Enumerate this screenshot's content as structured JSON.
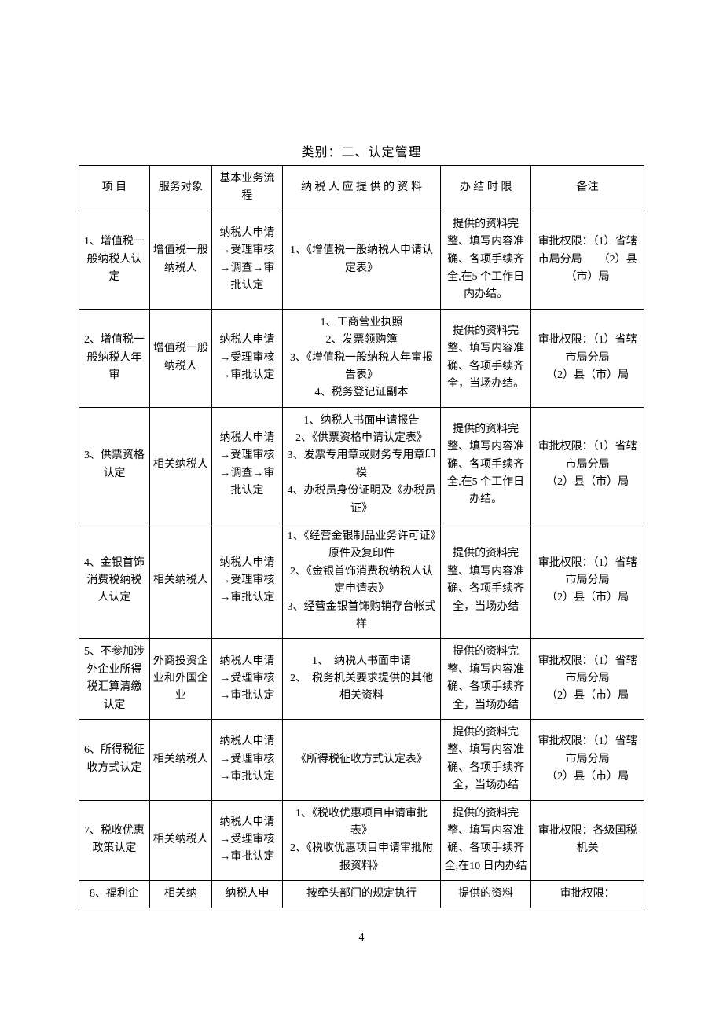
{
  "title": "类别：二、认定管理",
  "pageNumber": "4",
  "headers": [
    "项 目",
    "服务对象",
    "基本业务流程",
    "纳 税 人 应 提 供 的 资 料",
    "办 结 时 限",
    "备注"
  ],
  "rows": [
    {
      "c1": "1、增值税一般纳税人认定",
      "c2": "增值税一般纳税人",
      "c3": "纳税人申请→受理审核→调查→审批认定",
      "c4": "1、《增值税一般纳税人申请认定表》",
      "c5": "提供的资料完整、填写内容准确、各项手续齐全,在5 个工作日内办结。",
      "c6": "审批权限：（1）省辖市局分局　　（2）县（市）局"
    },
    {
      "c1": "2、增值税一般纳税人年审",
      "c2": "增值税一般纳税人",
      "c3": "纳税人申请→受理审核→审批认定",
      "c4": "1、工商营业执照\n2、发票领购簿\n3、《增值税一般纳税人年审报告表》\n4、税务登记证副本",
      "c5": "提供的资料完整、填写内容准确、各项手续齐全，当场办结。",
      "c6": "审批权限：（1）省辖市局分局\n（2）县（市）局"
    },
    {
      "c1": "3、供票资格认定",
      "c2": "相关纳税人",
      "c3": "纳税人申请→受理审核→调查→审批认定",
      "c4": "1、纳税人书面申请报告\n2、《供票资格申请认定表》\n3、发票专用章或财务专用章印模\n4、办税员身份证明及《办税员证》",
      "c5": "提供的资料完整、填写内容准确、各项手续齐全,在5 个工作日办结。",
      "c6": "审批权限：（1）省辖市局分局\n（2）县（市）局"
    },
    {
      "c1": "4、金银首饰消费税纳税人认定",
      "c2": "相关纳税人",
      "c3": "纳税人申请→受理审核→审批认定",
      "c4": "1、《经营金银制品业务许可证》原件及复印件\n2、《金银首饰消费税纳税人认定申请表》\n3、经营金银首饰购销存台帐式样",
      "c5": "提供的资料完整、填写内容准确、各项手续齐全，当场办结",
      "c6": "审批权限：（1）省辖市局分局\n（2）县（市）局"
    },
    {
      "c1": "5、不参加涉外企业所得税汇算清缴认定",
      "c2": "外商投资企业和外国企业",
      "c3": "纳税人申请→受理审核→审批认定",
      "c4": "1、　纳税人书面申请\n2、　税务机关要求提供的其他相关资料",
      "c5": "提供的资料完整、填写内容准确、各项手续齐全，当场办结",
      "c6": "审批权限：（1）省辖市局分局\n（2）县（市）局"
    },
    {
      "c1": "6、所得税征收方式认定",
      "c2": "相关纳税人",
      "c3": "纳税人申请→受理审核→审批认定",
      "c4": "《所得税征收方式认定表》",
      "c5": "提供的资料完整、填写内容准确、各项手续齐全，当场办结",
      "c6": "审批权限：（1）省辖市局分局\n（2）县（市）局"
    },
    {
      "c1": "7、税收优惠政策认定",
      "c2": "相关纳税人",
      "c3": "纳税人申请→受理审核→审批认定",
      "c4": "1、《税收优惠项目申请审批表》\n2、《税收优惠项目申请审批附报资料》",
      "c5": "提供的资料完整、填写内容准确、各项手续齐全,在10 日内办结",
      "c6": "审批权限：各级国税机关"
    },
    {
      "c1": "8、福利企",
      "c2": "相关纳",
      "c3": "纳税人申",
      "c4": "按牵头部门的规定执行",
      "c5": "提供的资料",
      "c6": "审批权限："
    }
  ]
}
